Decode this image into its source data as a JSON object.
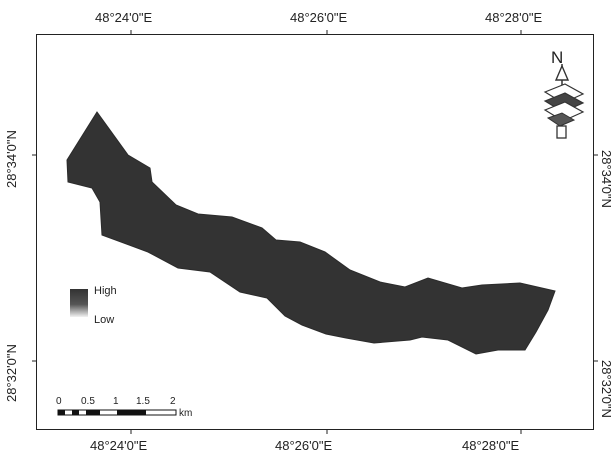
{
  "map": {
    "top_labels": [
      "48°24'0\"E",
      "48°26'0\"E",
      "48°28'0\"E"
    ],
    "bottom_labels": [
      "48°24'0\"E",
      "48°26'0\"E",
      "48°28'0\"E"
    ],
    "left_labels": [
      "28°34'0\"N",
      "28°32'0\"N"
    ],
    "right_labels": [
      "28°34'0\"N",
      "28°32'0\"N"
    ],
    "region_color": "#333333"
  },
  "north_arrow": {
    "label": "N",
    "icon": "north-arrow-icon"
  },
  "legend": {
    "high_label": "High",
    "low_label": "Low",
    "high_color": "#333333",
    "low_color": "#f2f2f2"
  },
  "scale_bar": {
    "ticks": [
      "0",
      "0.5",
      "1",
      "1.5",
      "2"
    ],
    "unit": "km"
  }
}
